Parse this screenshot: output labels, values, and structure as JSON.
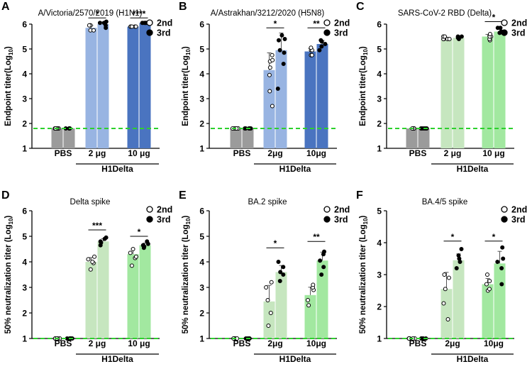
{
  "chart_data": [
    {
      "panel": "A",
      "type": "bar",
      "title": "A/Victoria/2570/2019 (H1N1)",
      "ylabel": "Endpoint titer(Log",
      "ylabel_sub": "10",
      "ylabel_tail": ")",
      "ylim": [
        1,
        6
      ],
      "yticks": [
        1,
        2,
        3,
        4,
        5,
        6
      ],
      "categories": [
        "PBS",
        "2 μg",
        "10 μg"
      ],
      "group_label": "H1Delta",
      "baseline": 1.8,
      "legend": [
        "2nd",
        "3rd"
      ],
      "legend_position": "top-right",
      "series": [
        {
          "name": "2nd",
          "values": [
            1.8,
            5.85,
            5.9
          ],
          "points": [
            [
              1.8,
              1.8,
              1.8,
              1.8,
              1.8
            ],
            [
              5.75,
              5.75,
              5.95,
              5.95,
              5.95
            ],
            [
              5.9,
              5.9,
              5.9,
              5.9,
              5.9
            ]
          ]
        },
        {
          "name": "3rd",
          "values": [
            1.8,
            6.0,
            6.05
          ],
          "points": [
            [
              1.8,
              1.8,
              1.8,
              1.8,
              1.8
            ],
            [
              5.85,
              5.95,
              6.05,
              6.05,
              6.1
            ],
            [
              6.05,
              6.05,
              6.05,
              6.05,
              6.05
            ]
          ]
        }
      ],
      "significance": [
        {
          "category": 1,
          "label": "*",
          "y": 6.25
        },
        {
          "category": 2,
          "label": "****",
          "y": 6.25
        }
      ]
    },
    {
      "panel": "B",
      "type": "bar",
      "title": "A/Astrakhan/3212/2020 (H5N8)",
      "ylabel": "Endpoint titer(Log",
      "ylabel_sub": "10",
      "ylabel_tail": ")",
      "ylim": [
        1,
        6
      ],
      "yticks": [
        1,
        2,
        3,
        4,
        5,
        6
      ],
      "categories": [
        "PBS",
        "2μg",
        "10μg"
      ],
      "group_label": "H1Delta",
      "baseline": 1.8,
      "legend": [
        "2nd",
        "3rd"
      ],
      "legend_position": "top-right",
      "series": [
        {
          "name": "2nd",
          "values": [
            1.8,
            4.15,
            4.9
          ],
          "points": [
            [
              1.8,
              1.8,
              1.8,
              1.8,
              1.8
            ],
            [
              2.7,
              3.3,
              3.95,
              4.25,
              4.5,
              4.55,
              4.75
            ],
            [
              4.75,
              4.75,
              4.95,
              4.95,
              5.05
            ]
          ]
        },
        {
          "name": "3rd",
          "values": [
            1.8,
            4.95,
            5.2
          ],
          "points": [
            [
              1.8,
              1.8,
              1.8,
              1.8,
              1.8
            ],
            [
              3.4,
              4.4,
              4.85,
              4.95,
              5.35,
              5.4,
              5.55
            ],
            [
              4.95,
              5.1,
              5.2,
              5.3,
              5.35
            ]
          ]
        }
      ],
      "significance": [
        {
          "category": 1,
          "label": "*",
          "y": 5.85
        },
        {
          "category": 2,
          "label": "**",
          "y": 5.85
        }
      ]
    },
    {
      "panel": "C",
      "type": "bar",
      "title": "SARS-CoV-2 RBD (Delta)",
      "ylabel": "Endpoint titer(Log",
      "ylabel_sub": "10",
      "ylabel_tail": ")",
      "ylim": [
        1,
        6
      ],
      "yticks": [
        1,
        2,
        3,
        4,
        5,
        6
      ],
      "categories": [
        "PBS",
        "2 μg",
        "10 μg"
      ],
      "group_label": "H1Delta",
      "baseline": 1.8,
      "legend": [
        "2nd",
        "3rd"
      ],
      "legend_position": "top-right",
      "series": [
        {
          "name": "2nd",
          "values": [
            1.8,
            5.4,
            5.5
          ],
          "points": [
            [
              1.8,
              1.8,
              1.8,
              1.8,
              1.8
            ],
            [
              5.4,
              5.4,
              5.4,
              5.4,
              5.4,
              5.5,
              5.5
            ],
            [
              5.35,
              5.4,
              5.5,
              5.5,
              5.6
            ]
          ]
        },
        {
          "name": "3rd",
          "values": [
            1.8,
            5.45,
            5.7
          ],
          "points": [
            [
              1.8,
              1.8,
              1.8,
              1.8,
              1.8
            ],
            [
              5.4,
              5.45,
              5.45,
              5.5,
              5.5
            ],
            [
              5.65,
              5.65,
              5.7,
              5.85,
              5.85
            ]
          ]
        }
      ],
      "significance": [
        {
          "category": 2,
          "label": "*",
          "y": 6.1
        }
      ]
    },
    {
      "panel": "D",
      "type": "bar",
      "title": "Delta spike",
      "ylabel": "50% neutralization titer (Log",
      "ylabel_sub": "10",
      "ylabel_tail": ")",
      "ylim": [
        1,
        6
      ],
      "yticks": [
        1,
        2,
        3,
        4,
        5,
        6
      ],
      "categories": [
        "PBS",
        "2 μg",
        "10 μg"
      ],
      "group_label": "H1Delta",
      "baseline": 1.0,
      "legend": [
        "2nd",
        "3rd"
      ],
      "legend_position": "top-right",
      "series": [
        {
          "name": "2nd",
          "values": [
            1.0,
            4.0,
            4.3
          ],
          "points": [
            [
              1.0,
              1.0,
              1.0,
              1.0,
              1.0
            ],
            [
              3.7,
              3.95,
              4.0,
              4.1,
              4.2
            ],
            [
              3.85,
              4.15,
              4.2,
              4.35,
              4.5
            ]
          ]
        },
        {
          "name": "3rd",
          "values": [
            1.0,
            4.8,
            4.65
          ],
          "points": [
            [
              1.0,
              1.0,
              1.0,
              1.0,
              1.0
            ],
            [
              4.65,
              4.75,
              4.8,
              4.9,
              4.95
            ],
            [
              4.55,
              4.6,
              4.65,
              4.7,
              4.8
            ]
          ]
        }
      ],
      "significance": [
        {
          "category": 1,
          "label": "***",
          "y": 5.25
        },
        {
          "category": 2,
          "label": "*",
          "y": 5.0
        }
      ]
    },
    {
      "panel": "E",
      "type": "bar",
      "title": "BA.2 spike",
      "ylabel": "50% neutralization titer (Log",
      "ylabel_sub": "10",
      "ylabel_tail": ")",
      "ylim": [
        1,
        6
      ],
      "yticks": [
        1,
        2,
        3,
        4,
        5,
        6
      ],
      "categories": [
        "PBS",
        "2μg",
        "10μg"
      ],
      "group_label": "H1Delta",
      "baseline": 1.0,
      "legend": [
        "2nd",
        "3rd"
      ],
      "legend_position": "top-right",
      "series": [
        {
          "name": "2nd",
          "values": [
            1.0,
            2.45,
            2.7
          ],
          "points": [
            [
              1.0,
              1.0,
              1.0,
              1.0,
              1.0
            ],
            [
              1.5,
              2.0,
              2.5,
              3.0,
              3.2
            ],
            [
              2.3,
              2.5,
              2.9,
              3.0,
              3.1
            ]
          ]
        },
        {
          "name": "3rd",
          "values": [
            1.0,
            3.6,
            4.05
          ],
          "points": [
            [
              1.0,
              1.0,
              1.0,
              1.0,
              1.0
            ],
            [
              3.25,
              3.5,
              3.6,
              3.8,
              4.0
            ],
            [
              3.5,
              3.8,
              4.05,
              4.3,
              4.4
            ]
          ]
        }
      ],
      "significance": [
        {
          "category": 1,
          "label": "*",
          "y": 4.55
        },
        {
          "category": 2,
          "label": "**",
          "y": 4.8
        }
      ]
    },
    {
      "panel": "F",
      "type": "bar",
      "title": "BA.4/5 spike",
      "ylabel": "50% neutralization titer (Log",
      "ylabel_sub": "10",
      "ylabel_tail": ")",
      "ylim": [
        1,
        5
      ],
      "yticks": [
        1,
        2,
        3,
        4,
        5
      ],
      "categories": [
        "PBS",
        "2μg",
        "10μg"
      ],
      "group_label": "H1Delta",
      "baseline": 1.0,
      "legend": [
        "2nd",
        "3rd"
      ],
      "legend_position": "top-right",
      "series": [
        {
          "name": "2nd",
          "values": [
            1.0,
            2.55,
            2.7
          ],
          "points": [
            [
              1.0,
              1.0,
              1.0,
              1.0,
              1.0
            ],
            [
              1.6,
              2.1,
              2.55,
              2.9,
              3.0
            ],
            [
              2.5,
              2.55,
              2.7,
              2.8,
              3.0
            ]
          ]
        },
        {
          "name": "3rd",
          "values": [
            1.0,
            3.45,
            3.35
          ],
          "points": [
            [
              1.0,
              1.0,
              1.0,
              1.0,
              1.0
            ],
            [
              3.2,
              3.4,
              3.5,
              3.6,
              3.8
            ],
            [
              2.7,
              3.2,
              3.4,
              3.5,
              3.85
            ]
          ]
        }
      ],
      "significance": [
        {
          "category": 1,
          "label": "*",
          "y": 4.05
        },
        {
          "category": 2,
          "label": "*",
          "y": 4.05
        }
      ]
    }
  ],
  "colors": {
    "pbs": "#9b9b9b",
    "flu_2ug": "#98b4e2",
    "flu_10ug": "#4a74c0",
    "cov_2ug": "#c6e6bf",
    "cov_10ug": "#a2e8a0",
    "baseline": "#2dd12d",
    "ink": "#000000"
  }
}
